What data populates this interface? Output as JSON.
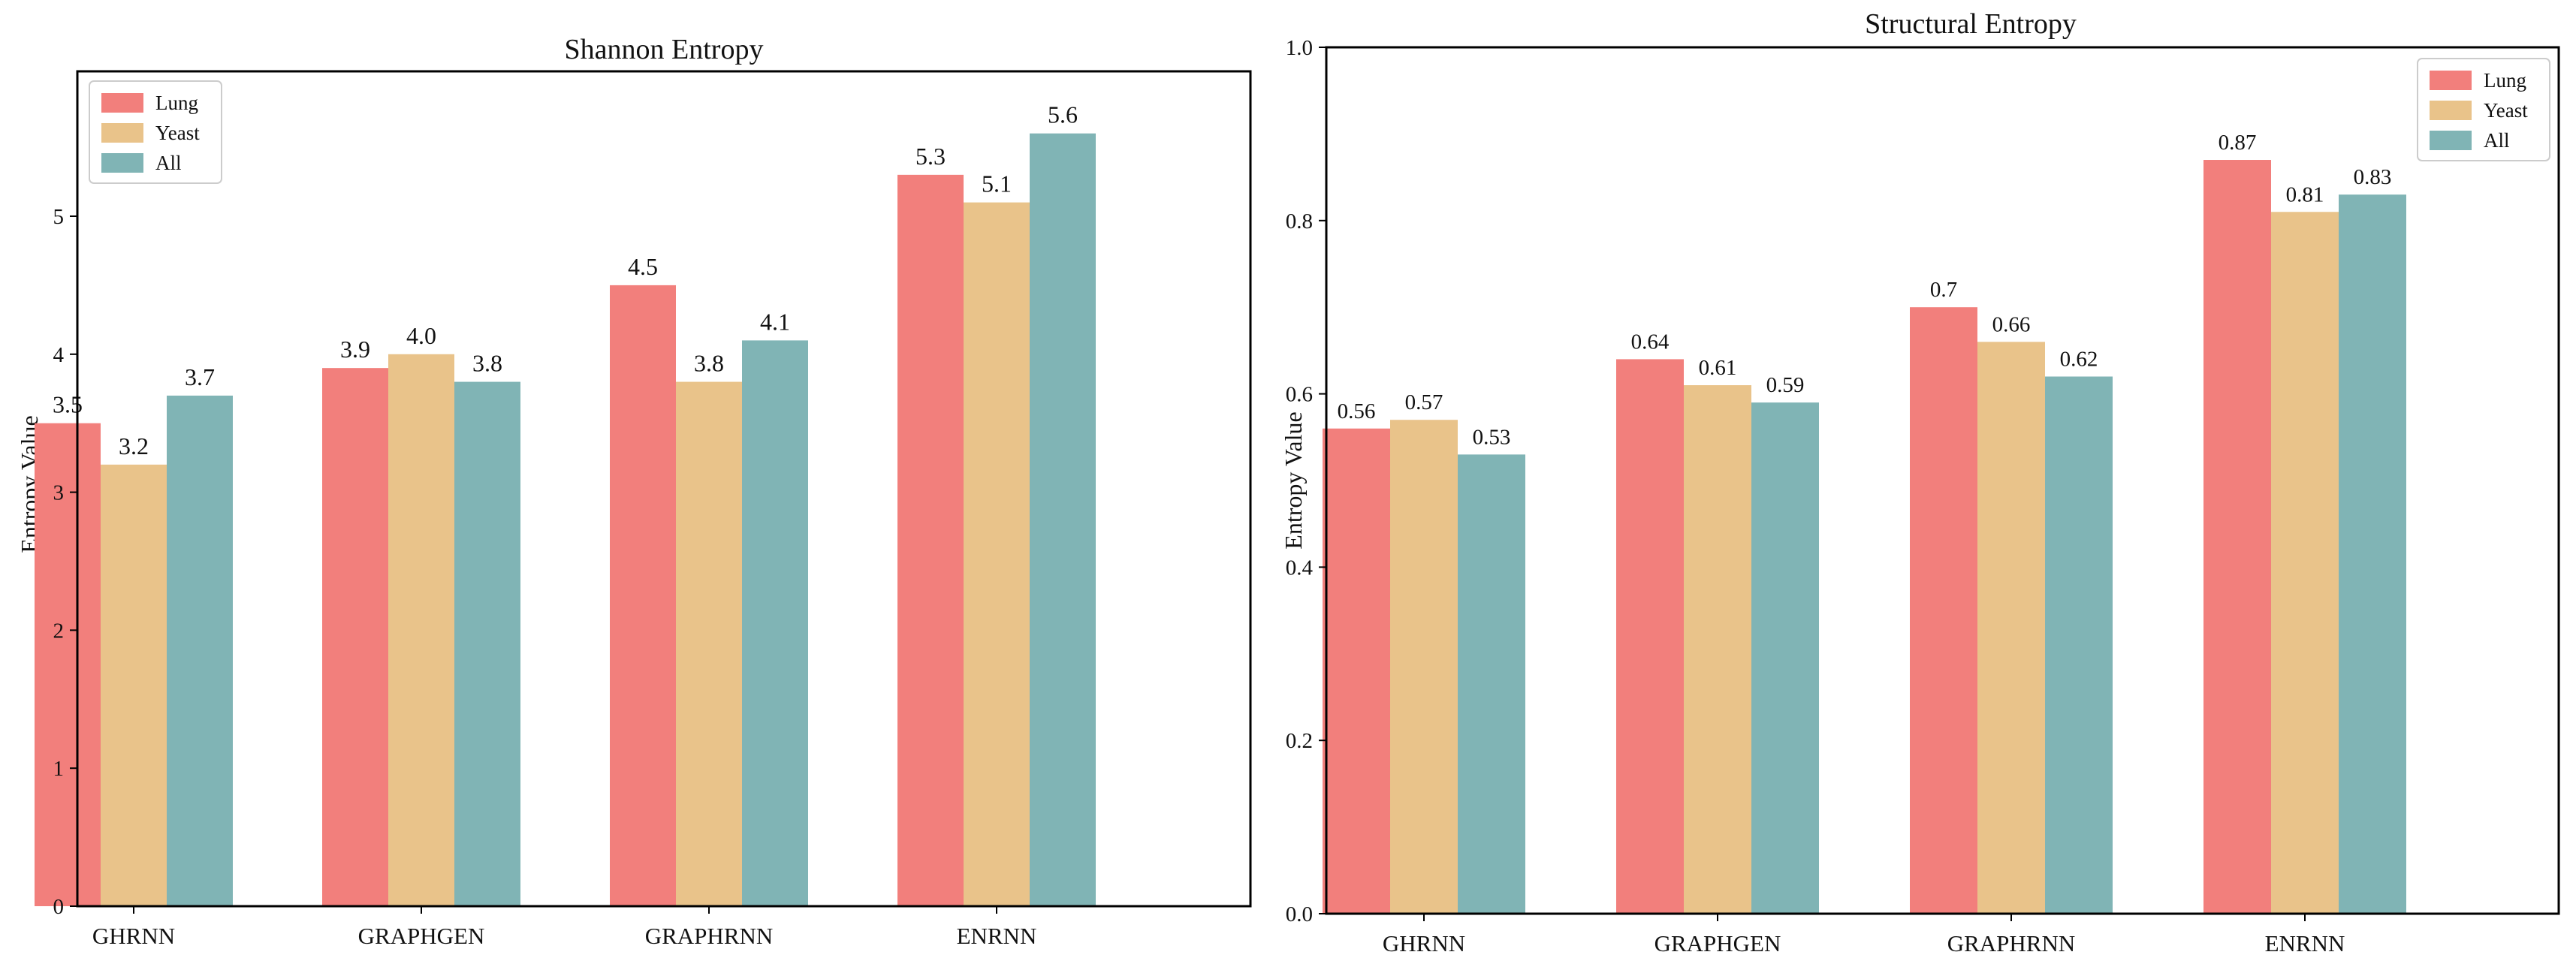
{
  "colors": {
    "Lung": "#f27f7c",
    "Yeast": "#e9c38a",
    "All": "#80b4b5"
  },
  "chart_data": [
    {
      "type": "bar",
      "title": "Shannon Entropy",
      "xlabel": "",
      "ylabel": "Entropy Value",
      "categories": [
        "GHRNN",
        "GRAPHGEN",
        "GRAPHRNN",
        "ENRNN"
      ],
      "series": [
        {
          "name": "Lung",
          "values": [
            3.5,
            3.9,
            4.5,
            5.3
          ],
          "labels": [
            "3.5",
            "3.9",
            "4.5",
            "5.3"
          ]
        },
        {
          "name": "Yeast",
          "values": [
            3.2,
            4.0,
            3.8,
            5.1
          ],
          "labels": [
            "3.2",
            "4.0",
            "3.8",
            "5.1"
          ]
        },
        {
          "name": "All",
          "values": [
            3.7,
            3.8,
            4.1,
            5.6
          ],
          "labels": [
            "3.7",
            "3.8",
            "4.1",
            "5.6"
          ]
        }
      ],
      "ylim": [
        0,
        6.05
      ],
      "yticks": [
        0,
        1,
        2,
        3,
        4,
        5
      ],
      "ytick_labels": [
        "0",
        "1",
        "2",
        "3",
        "4",
        "5"
      ],
      "legend": "top-left",
      "grid": false
    },
    {
      "type": "bar",
      "title": "Structural Entropy",
      "xlabel": "",
      "ylabel": "Entropy Value",
      "categories": [
        "GHRNN",
        "GRAPHGEN",
        "GRAPHRNN",
        "ENRNN"
      ],
      "series": [
        {
          "name": "Lung",
          "values": [
            0.56,
            0.64,
            0.7,
            0.87
          ],
          "labels": [
            "0.56",
            "0.64",
            "0.7",
            "0.87"
          ]
        },
        {
          "name": "Yeast",
          "values": [
            0.57,
            0.61,
            0.66,
            0.81
          ],
          "labels": [
            "0.57",
            "0.61",
            "0.66",
            "0.81"
          ]
        },
        {
          "name": "All",
          "values": [
            0.53,
            0.59,
            0.62,
            0.83
          ],
          "labels": [
            "0.53",
            "0.59",
            "0.62",
            "0.83"
          ]
        }
      ],
      "ylim": [
        0,
        1.0
      ],
      "yticks": [
        0,
        0.2,
        0.4,
        0.6,
        0.8,
        1.0
      ],
      "ytick_labels": [
        "0.0",
        "0.2",
        "0.4",
        "0.6",
        "0.8",
        "1.0"
      ],
      "legend": "top-right",
      "grid": false
    }
  ]
}
